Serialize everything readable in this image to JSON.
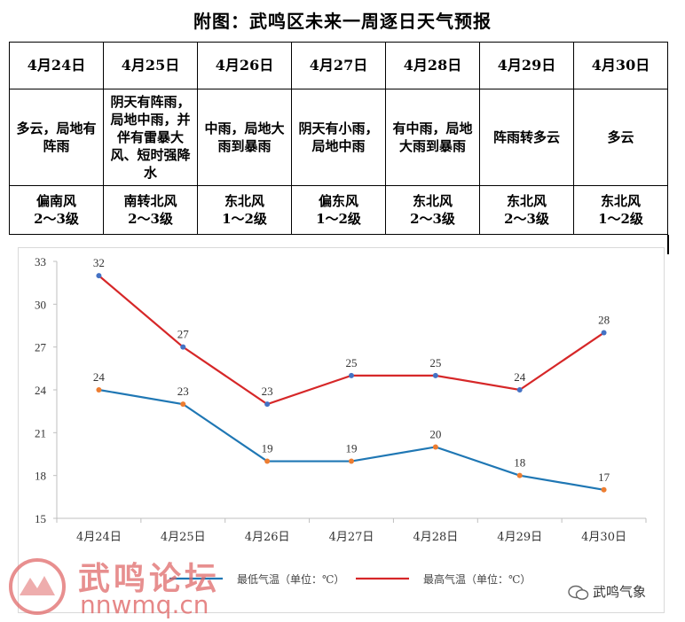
{
  "title": "附图：武鸣区未来一周逐日天气预报",
  "forecast": {
    "dates": [
      "4月24日",
      "4月25日",
      "4月26日",
      "4月27日",
      "4月28日",
      "4月29日",
      "4月30日"
    ],
    "weather": [
      "多云，局地有阵雨",
      "阴天有阵雨，局地中雨，并伴有雷暴大风、短时强降水",
      "中雨，局地大雨到暴雨",
      "阴天有小雨，局地中雨",
      "有中雨，局地大雨到暴雨",
      "阵雨转多云",
      "多云"
    ],
    "wind_dir": [
      "偏南风",
      "南转北风",
      "东北风",
      "偏东风",
      "东北风",
      "东北风",
      "东北风"
    ],
    "wind_lvl": [
      "2～3级",
      "2～3级",
      "1～2级",
      "1～2级",
      "2～3级",
      "2～3级",
      "1～2级"
    ]
  },
  "chart_data": {
    "type": "line",
    "categories": [
      "4月24日",
      "4月25日",
      "4月26日",
      "4月27日",
      "4月28日",
      "4月29日",
      "4月30日"
    ],
    "series": [
      {
        "name": "最低气温（单位：℃）",
        "values": [
          24,
          23,
          19,
          19,
          20,
          18,
          17
        ],
        "color": "#1f77b4",
        "marker_color": "#ed7d31"
      },
      {
        "name": "最高气温（单位：℃）",
        "values": [
          32,
          27,
          23,
          25,
          25,
          24,
          28
        ],
        "color": "#d62728",
        "marker_color": "#4472c4"
      }
    ],
    "ylim": [
      15,
      33
    ],
    "yticks": [
      15,
      18,
      21,
      24,
      27,
      30,
      33
    ],
    "grid": false,
    "legend": "bottom"
  },
  "watermark": {
    "cn": "武鸣论坛",
    "url": "nnwmq.cn"
  },
  "brand": "武鸣气象",
  "colors": {
    "high": "#d62728",
    "low": "#1f77b4",
    "watermark": "#e06a6a"
  }
}
